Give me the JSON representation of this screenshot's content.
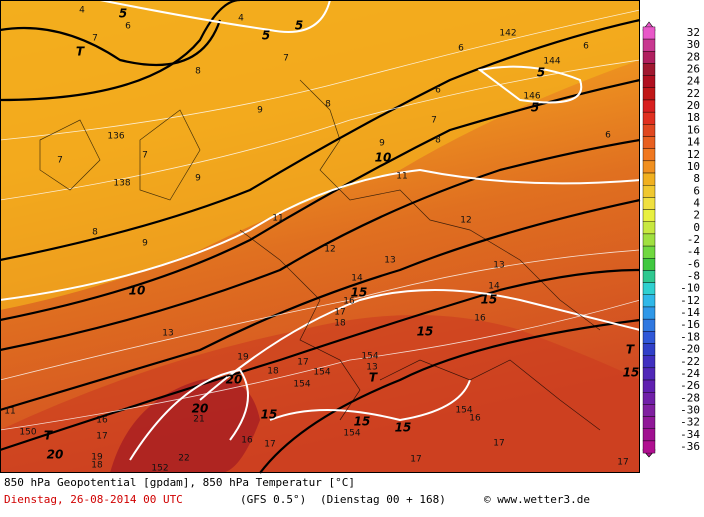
{
  "footer": {
    "title": "850 hPa Geopotential [gpdam], 850 hPa Temperatur [°C]",
    "date": "Dienstag, 26-08-2014  00 UTC",
    "model": "(GFS 0.5°)",
    "run": "(Dienstag 00 + 168)",
    "credit": "© www.wetter3.de"
  },
  "colorbar": {
    "ticks": [
      32,
      30,
      28,
      26,
      24,
      22,
      20,
      18,
      16,
      14,
      12,
      10,
      8,
      6,
      4,
      2,
      0,
      -2,
      -4,
      -6,
      -8,
      -10,
      -12,
      -14,
      -16,
      -18,
      -20,
      -22,
      -24,
      -26,
      -28,
      -30,
      -32,
      -34,
      -36
    ]
  },
  "isotherm_labels": [
    5,
    5,
    5,
    10,
    10,
    15,
    15,
    15,
    20,
    20,
    20,
    15,
    15,
    5,
    5,
    15,
    15
  ],
  "geopotential_labels": [
    144,
    142,
    146,
    136,
    138,
    154,
    154,
    154,
    154,
    154,
    150,
    152
  ],
  "pressure_markers": [
    "T",
    "T",
    "T",
    "T"
  ],
  "temperature_labels": [
    4,
    7,
    6,
    4,
    7,
    8,
    8,
    9,
    6,
    6,
    6,
    7,
    8,
    9,
    6,
    11,
    7,
    7,
    9,
    8,
    9,
    11,
    12,
    12,
    13,
    13,
    14,
    14,
    16,
    17,
    18,
    16,
    13,
    19,
    18,
    17,
    13,
    11,
    16,
    17,
    19,
    18,
    21,
    22,
    16,
    17,
    16,
    17,
    17,
    17
  ]
}
